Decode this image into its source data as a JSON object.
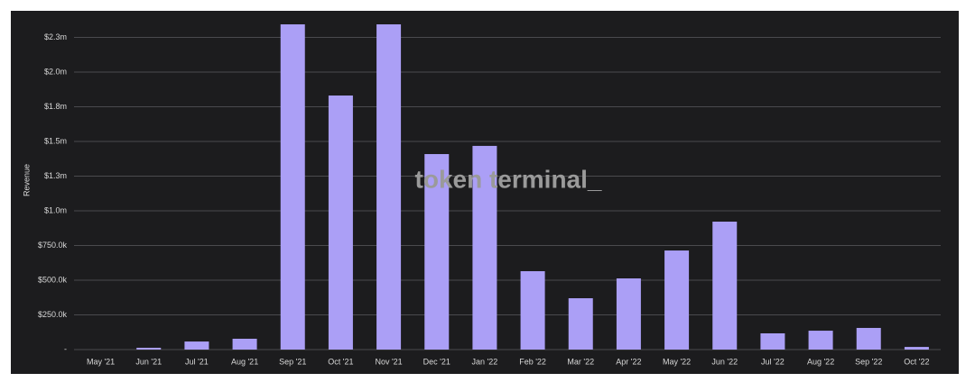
{
  "chart_data": {
    "type": "bar",
    "y_label": "Revenue",
    "watermark": "token terminal_",
    "categories": [
      "May '21",
      "Jun '21",
      "Jul '21",
      "Aug '21",
      "Sep '21",
      "Oct '21",
      "Nov '21",
      "Dec '21",
      "Jan '22",
      "Feb '22",
      "Mar '22",
      "Apr '22",
      "May '22",
      "Jun '22",
      "Jul '22",
      "Aug '22",
      "Sep '22",
      "Oct '22"
    ],
    "values": [
      0,
      13000,
      58000,
      78000,
      2344000,
      1831000,
      2344000,
      1409000,
      1468000,
      565000,
      370000,
      513000,
      714000,
      922000,
      117000,
      136000,
      156000,
      19000
    ],
    "color": "#ab9ff6",
    "ylim": [
      0,
      2400000
    ],
    "yticks": [
      {
        "value": 0,
        "label": "-"
      },
      {
        "value": 250000,
        "label": "$250.0k"
      },
      {
        "value": 500000,
        "label": "$500.0k"
      },
      {
        "value": 750000,
        "label": "$750.0k"
      },
      {
        "value": 1000000,
        "label": "$1.0m"
      },
      {
        "value": 1250000,
        "label": "$1.3m"
      },
      {
        "value": 1500000,
        "label": "$1.5m"
      },
      {
        "value": 1750000,
        "label": "$1.8m"
      },
      {
        "value": 2000000,
        "label": "$2.0m"
      },
      {
        "value": 2250000,
        "label": "$2.3m"
      }
    ],
    "grid": true
  }
}
